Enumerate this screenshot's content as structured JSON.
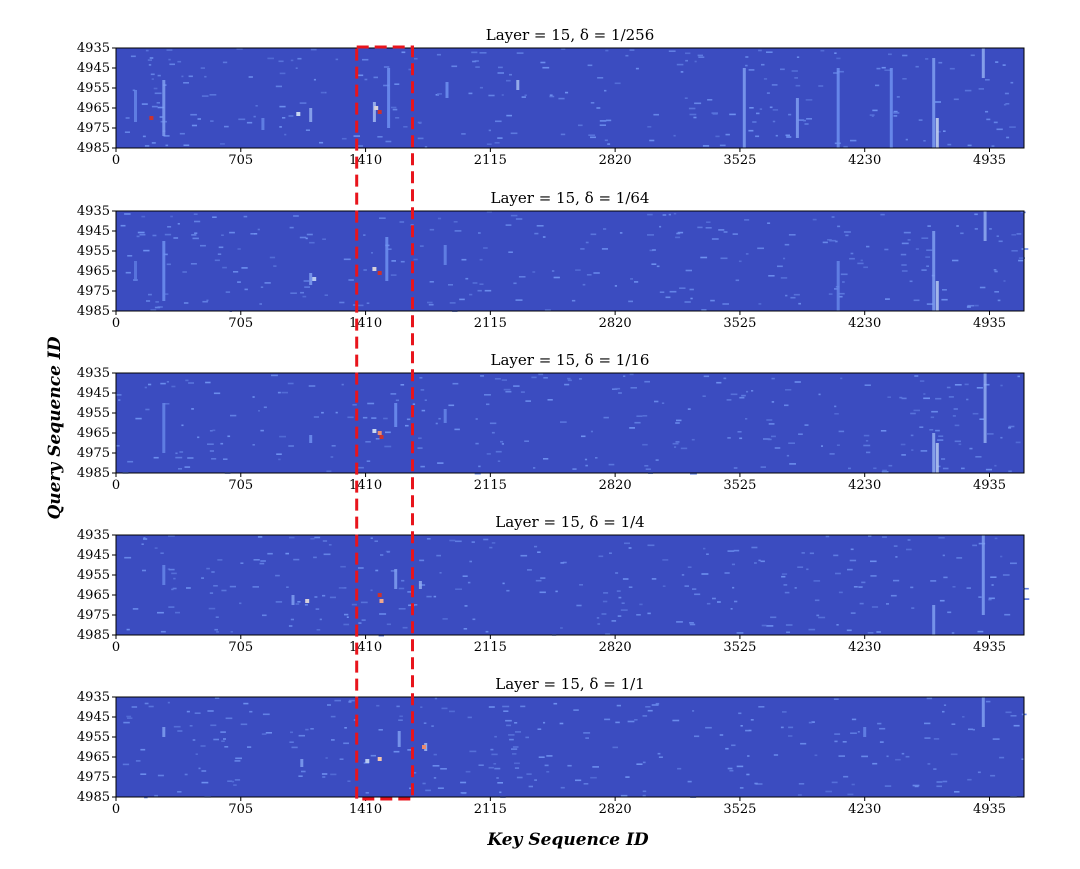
{
  "chart_data": {
    "type": "heatmap",
    "xlabel": "Key Sequence ID",
    "ylabel": "Query Sequence ID",
    "xticks": [
      "0",
      "705",
      "1410",
      "2115",
      "2820",
      "3525",
      "4230",
      "4935"
    ],
    "xtick_values": [
      0,
      705,
      1410,
      2115,
      2820,
      3525,
      4230,
      4935
    ],
    "yticks": [
      "4935",
      "4945",
      "4955",
      "4965",
      "4975",
      "4985"
    ],
    "ytick_values": [
      4935,
      4945,
      4955,
      4965,
      4975,
      4985
    ],
    "xlim": [
      0,
      5130
    ],
    "ylim": [
      4935,
      4985
    ],
    "colormap": "coolwarm",
    "background_color": "#3b4cc0",
    "highlight_box": {
      "color": "#e8141c",
      "style": "dashed",
      "x_range": [
        1360,
        1675
      ]
    },
    "panels": [
      {
        "title": "Layer = 15,   δ = 1/256",
        "bright_columns": [
          {
            "x": 110,
            "y": [
              4956,
              4972
            ],
            "i": 0.25
          },
          {
            "x": 270,
            "y": [
              4951,
              4979
            ],
            "i": 0.35
          },
          {
            "x": 830,
            "y": [
              4970,
              4976
            ],
            "i": 0.25
          },
          {
            "x": 1100,
            "y": [
              4965,
              4972
            ],
            "i": 0.4
          },
          {
            "x": 1460,
            "y": [
              4962,
              4972
            ],
            "i": 0.45
          },
          {
            "x": 1540,
            "y": [
              4945,
              4975
            ],
            "i": 0.3
          },
          {
            "x": 1870,
            "y": [
              4952,
              4960
            ],
            "i": 0.3
          },
          {
            "x": 2270,
            "y": [
              4951,
              4956
            ],
            "i": 0.45
          },
          {
            "x": 3550,
            "y": [
              4945,
              4985
            ],
            "i": 0.35
          },
          {
            "x": 3850,
            "y": [
              4960,
              4980
            ],
            "i": 0.35
          },
          {
            "x": 4080,
            "y": [
              4945,
              4985
            ],
            "i": 0.3
          },
          {
            "x": 4380,
            "y": [
              4945,
              4985
            ],
            "i": 0.3
          },
          {
            "x": 4620,
            "y": [
              4940,
              4985
            ],
            "i": 0.35
          },
          {
            "x": 4640,
            "y": [
              4970,
              4985
            ],
            "i": 0.55
          },
          {
            "x": 4900,
            "y": [
              4935,
              4950
            ],
            "i": 0.4
          }
        ],
        "hot_cells": [
          {
            "x": 200,
            "y": 4970,
            "i": 0.95
          },
          {
            "x": 1490,
            "y": 4967,
            "i": 0.95
          },
          {
            "x": 1470,
            "y": 4965,
            "i": 0.6
          },
          {
            "x": 1030,
            "y": 4968,
            "i": 0.55
          }
        ]
      },
      {
        "title": "Layer = 15,   δ = 1/64",
        "bright_columns": [
          {
            "x": 110,
            "y": [
              4960,
              4970
            ],
            "i": 0.2
          },
          {
            "x": 270,
            "y": [
              4950,
              4980
            ],
            "i": 0.3
          },
          {
            "x": 1100,
            "y": [
              4966,
              4972
            ],
            "i": 0.35
          },
          {
            "x": 1530,
            "y": [
              4948,
              4970
            ],
            "i": 0.3
          },
          {
            "x": 1860,
            "y": [
              4952,
              4962
            ],
            "i": 0.25
          },
          {
            "x": 4080,
            "y": [
              4960,
              4985
            ],
            "i": 0.25
          },
          {
            "x": 4620,
            "y": [
              4945,
              4985
            ],
            "i": 0.35
          },
          {
            "x": 4640,
            "y": [
              4970,
              4985
            ],
            "i": 0.5
          },
          {
            "x": 4910,
            "y": [
              4935,
              4950
            ],
            "i": 0.4
          }
        ],
        "hot_cells": [
          {
            "x": 1490,
            "y": 4966,
            "i": 0.95
          },
          {
            "x": 1460,
            "y": 4964,
            "i": 0.6
          },
          {
            "x": 1120,
            "y": 4969,
            "i": 0.5
          }
        ]
      },
      {
        "title": "Layer = 15,   δ = 1/16",
        "bright_columns": [
          {
            "x": 270,
            "y": [
              4950,
              4975
            ],
            "i": 0.25
          },
          {
            "x": 1100,
            "y": [
              4966,
              4970
            ],
            "i": 0.3
          },
          {
            "x": 1580,
            "y": [
              4950,
              4962
            ],
            "i": 0.3
          },
          {
            "x": 1860,
            "y": [
              4953,
              4960
            ],
            "i": 0.25
          },
          {
            "x": 4620,
            "y": [
              4965,
              4985
            ],
            "i": 0.4
          },
          {
            "x": 4640,
            "y": [
              4970,
              4985
            ],
            "i": 0.5
          },
          {
            "x": 4910,
            "y": [
              4935,
              4970
            ],
            "i": 0.4
          }
        ],
        "hot_cells": [
          {
            "x": 1500,
            "y": 4967,
            "i": 0.95
          },
          {
            "x": 1490,
            "y": 4965,
            "i": 0.8
          },
          {
            "x": 1460,
            "y": 4964,
            "i": 0.55
          }
        ]
      },
      {
        "title": "Layer = 15,   δ = 1/4",
        "bright_columns": [
          {
            "x": 270,
            "y": [
              4950,
              4960
            ],
            "i": 0.25
          },
          {
            "x": 1000,
            "y": [
              4965,
              4970
            ],
            "i": 0.35
          },
          {
            "x": 1580,
            "y": [
              4952,
              4962
            ],
            "i": 0.35
          },
          {
            "x": 1720,
            "y": [
              4958,
              4962
            ],
            "i": 0.4
          },
          {
            "x": 4620,
            "y": [
              4970,
              4985
            ],
            "i": 0.35
          },
          {
            "x": 4900,
            "y": [
              4935,
              4975
            ],
            "i": 0.35
          }
        ],
        "hot_cells": [
          {
            "x": 1490,
            "y": 4965,
            "i": 0.95
          },
          {
            "x": 1500,
            "y": 4968,
            "i": 0.75
          },
          {
            "x": 1080,
            "y": 4968,
            "i": 0.6
          }
        ]
      },
      {
        "title": "Layer = 15,   δ = 1/1",
        "bright_columns": [
          {
            "x": 270,
            "y": [
              4950,
              4955
            ],
            "i": 0.35
          },
          {
            "x": 1050,
            "y": [
              4966,
              4970
            ],
            "i": 0.35
          },
          {
            "x": 1600,
            "y": [
              4952,
              4960
            ],
            "i": 0.35
          },
          {
            "x": 1750,
            "y": [
              4958,
              4962
            ],
            "i": 0.45
          },
          {
            "x": 4230,
            "y": [
              4950,
              4955
            ],
            "i": 0.25
          },
          {
            "x": 4900,
            "y": [
              4935,
              4950
            ],
            "i": 0.35
          }
        ],
        "hot_cells": [
          {
            "x": 1490,
            "y": 4966,
            "i": 0.7
          },
          {
            "x": 1740,
            "y": 4960,
            "i": 0.8
          },
          {
            "x": 1420,
            "y": 4967,
            "i": 0.5
          }
        ]
      }
    ]
  }
}
